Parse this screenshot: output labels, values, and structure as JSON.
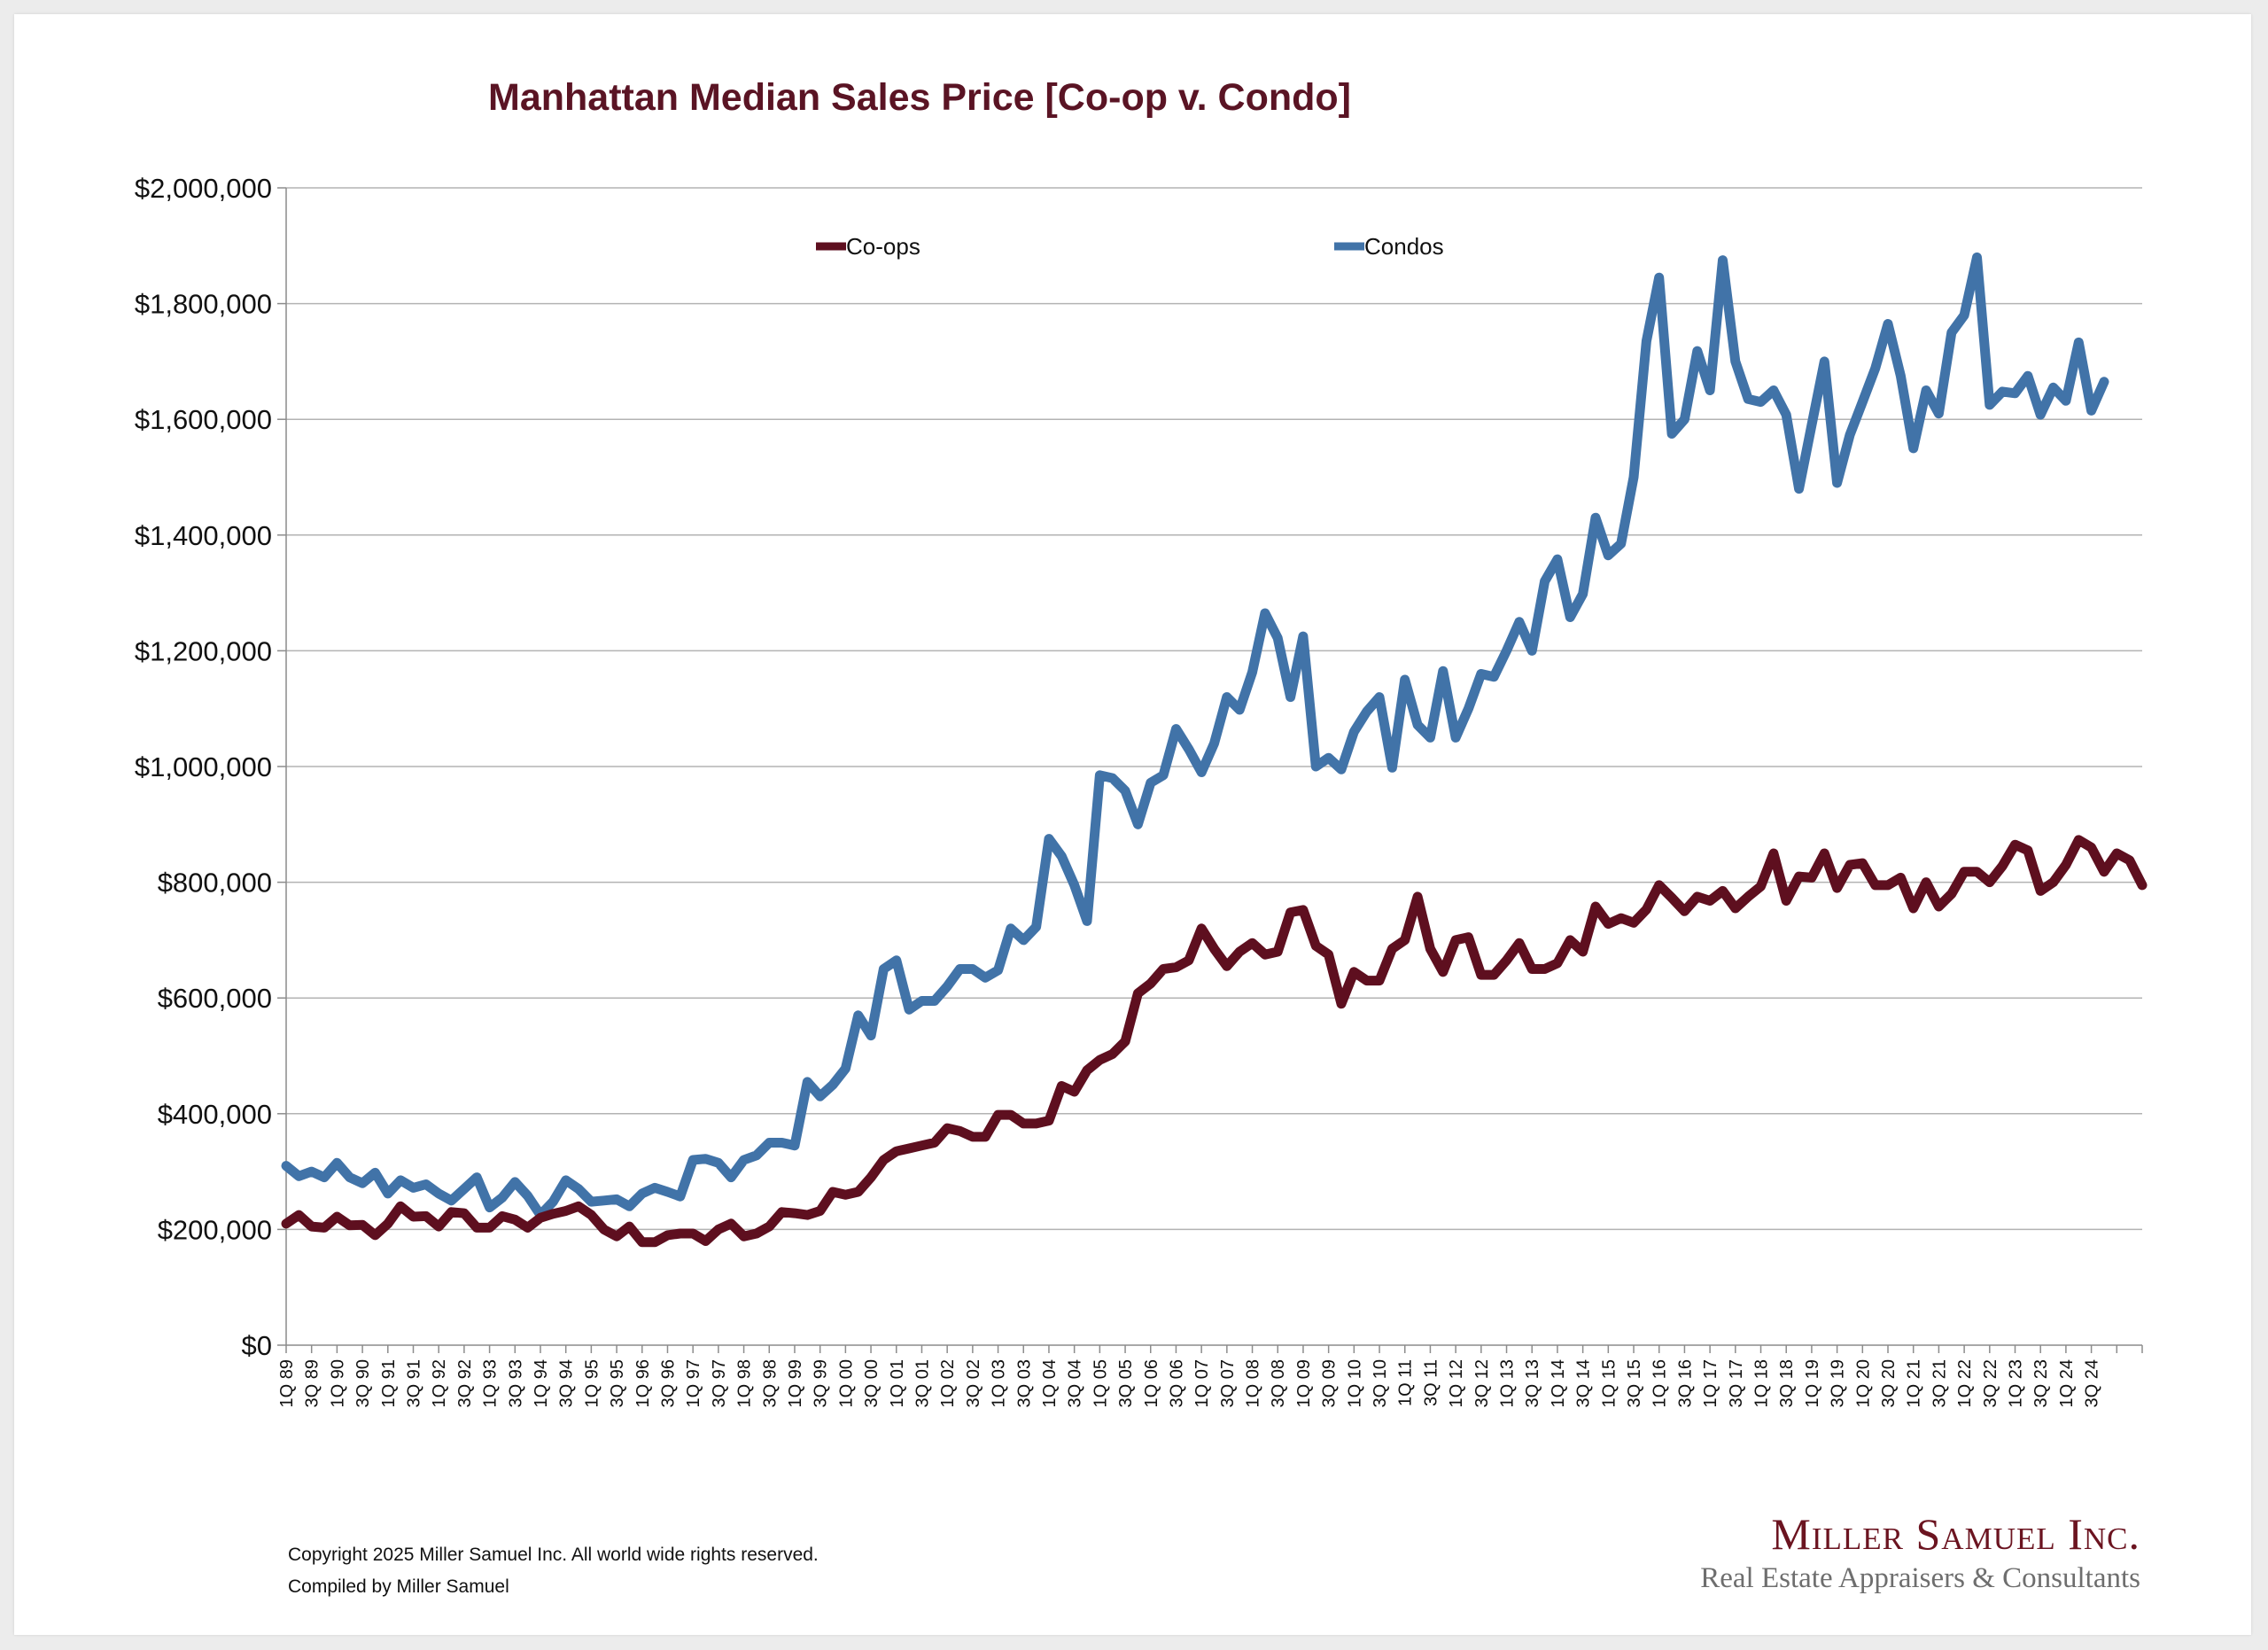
{
  "chart_data": {
    "type": "line",
    "title": "Manhattan Median Sales Price [Co-op v. Condo]",
    "xlabel": "",
    "ylabel": "",
    "ylim": [
      0,
      2000000
    ],
    "yticks": [
      0,
      200000,
      400000,
      600000,
      800000,
      1000000,
      1200000,
      1400000,
      1600000,
      1800000,
      2000000
    ],
    "ytick_labels": [
      "$0",
      "$200,000",
      "$400,000",
      "$600,000",
      "$800,000",
      "$1,000,000",
      "$1,200,000",
      "$1,400,000",
      "$1,600,000",
      "$1,800,000",
      "$2,000,000"
    ],
    "x_tick_labels": [
      "1Q 89",
      "3Q 89",
      "1Q 90",
      "3Q 90",
      "1Q 91",
      "3Q 91",
      "1Q 92",
      "3Q 92",
      "1Q 93",
      "3Q 93",
      "1Q 94",
      "3Q 94",
      "1Q 95",
      "3Q 95",
      "1Q 96",
      "3Q 96",
      "1Q 97",
      "3Q 97",
      "1Q 98",
      "3Q 98",
      "1Q 99",
      "3Q 99",
      "1Q 00",
      "3Q 00",
      "1Q 01",
      "3Q 01",
      "1Q 02",
      "3Q 02",
      "1Q 03",
      "3Q 03",
      "1Q 04",
      "3Q 04",
      "1Q 05",
      "3Q 05",
      "1Q 06",
      "3Q 06",
      "1Q 07",
      "3Q 07",
      "1Q 08",
      "3Q 08",
      "1Q 09",
      "3Q 09",
      "1Q 10",
      "3Q 10",
      "1Q 11",
      "3Q 11",
      "1Q 12",
      "3Q 12",
      "1Q 13",
      "3Q 13",
      "1Q 14",
      "3Q 14",
      "1Q 15",
      "3Q 15",
      "1Q 16",
      "3Q 16",
      "1Q 17",
      "3Q 17",
      "1Q 18",
      "3Q 18",
      "1Q 19",
      "3Q 19",
      "1Q 20",
      "3Q 20",
      "1Q 21",
      "3Q 21",
      "1Q 22",
      "3Q 22",
      "1Q 23",
      "3Q 23",
      "1Q 24",
      "3Q 24"
    ],
    "grid": "horizontal",
    "legend_position": "top",
    "series": [
      {
        "name": "Co-ops",
        "color": "#5e0f1f",
        "values": [
          210000,
          225000,
          205000,
          203000,
          222000,
          207000,
          208000,
          190000,
          210000,
          240000,
          222000,
          223000,
          205000,
          230000,
          228000,
          203000,
          203000,
          223000,
          217000,
          203000,
          220000,
          227000,
          232000,
          240000,
          225000,
          200000,
          188000,
          205000,
          178000,
          178000,
          190000,
          193000,
          193000,
          180000,
          200000,
          210000,
          188000,
          193000,
          205000,
          230000,
          228000,
          225000,
          232000,
          265000,
          260000,
          265000,
          290000,
          320000,
          335000,
          340000,
          345000,
          350000,
          375000,
          370000,
          360000,
          360000,
          398000,
          398000,
          383000,
          383000,
          388000,
          448000,
          438000,
          475000,
          493000,
          503000,
          525000,
          608000,
          625000,
          650000,
          653000,
          665000,
          720000,
          685000,
          655000,
          680000,
          695000,
          675000,
          680000,
          748000,
          752000,
          690000,
          675000,
          590000,
          645000,
          630000,
          630000,
          685000,
          700000,
          775000,
          685000,
          645000,
          700000,
          705000,
          640000,
          640000,
          665000,
          695000,
          650000,
          650000,
          660000,
          700000,
          680000,
          758000,
          728000,
          738000,
          730000,
          753000,
          795000,
          773000,
          750000,
          775000,
          768000,
          785000,
          755000,
          775000,
          793000,
          850000,
          768000,
          810000,
          808000,
          850000,
          790000,
          830000,
          833000,
          795000,
          795000,
          808000,
          755000,
          800000,
          758000,
          780000,
          818000,
          818000,
          800000,
          828000,
          865000,
          855000,
          785000,
          800000,
          830000,
          873000,
          860000,
          818000,
          850000,
          838000,
          795000
        ]
      },
      {
        "name": "Condos",
        "color": "#4173a8",
        "values": [
          310000,
          292000,
          300000,
          290000,
          315000,
          290000,
          280000,
          298000,
          262000,
          285000,
          272000,
          278000,
          262000,
          250000,
          270000,
          290000,
          238000,
          255000,
          282000,
          258000,
          225000,
          248000,
          285000,
          270000,
          248000,
          250000,
          252000,
          240000,
          262000,
          272000,
          265000,
          257000,
          320000,
          322000,
          315000,
          290000,
          320000,
          328000,
          350000,
          350000,
          345000,
          455000,
          430000,
          450000,
          478000,
          570000,
          535000,
          650000,
          665000,
          580000,
          595000,
          595000,
          620000,
          650000,
          650000,
          635000,
          648000,
          720000,
          700000,
          723000,
          875000,
          845000,
          795000,
          733000,
          985000,
          980000,
          958000,
          900000,
          972000,
          985000,
          1065000,
          1030000,
          990000,
          1040000,
          1120000,
          1098000,
          1163000,
          1265000,
          1222000,
          1120000,
          1225000,
          1000000,
          1015000,
          995000,
          1060000,
          1095000,
          1120000,
          998000,
          1150000,
          1072000,
          1050000,
          1165000,
          1050000,
          1100000,
          1160000,
          1155000,
          1200000,
          1250000,
          1200000,
          1320000,
          1358000,
          1258000,
          1298000,
          1430000,
          1365000,
          1385000,
          1500000,
          1735000,
          1845000,
          1575000,
          1600000,
          1718000,
          1650000,
          1875000,
          1700000,
          1635000,
          1630000,
          1650000,
          1608000,
          1480000,
          1590000,
          1700000,
          1490000,
          1573000,
          1630000,
          1688000,
          1765000,
          1675000,
          1550000,
          1650000,
          1610000,
          1750000,
          1780000,
          1880000,
          1625000,
          1648000,
          1645000,
          1675000,
          1608000,
          1655000,
          1632000,
          1733000,
          1615000,
          1665000
        ]
      }
    ]
  },
  "footer": {
    "copyright": "Copyright 2025 Miller Samuel Inc.  All world wide rights reserved.",
    "compiled": "Compiled by Miller Samuel"
  },
  "logo": {
    "name": "Miller Samuel Inc.",
    "tagline": "Real Estate Appraisers & Consultants"
  }
}
